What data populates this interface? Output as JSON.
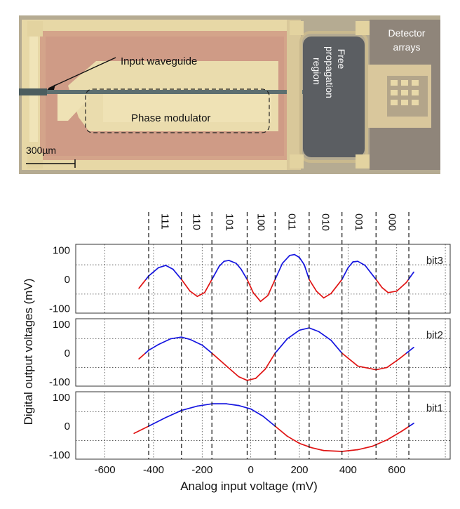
{
  "figure": {
    "labels": {
      "input_waveguide": "Input waveguide",
      "phase_modulator": "Phase modulator",
      "free_propagation_1": "Free",
      "free_propagation_2": "propagation",
      "free_propagation_3": "region",
      "detector_1": "Detector",
      "detector_2": "arrays",
      "scale_bar": "300µm"
    }
  },
  "colors": {
    "positive": "#1515e0",
    "negative": "#e01414"
  },
  "chart_data": {
    "type": "line",
    "xlabel": "Analog input voltage (mV)",
    "ylabel": "Digital output voltages (mV)",
    "xlim": [
      -720,
      820
    ],
    "x_ticks": [
      -600,
      -400,
      -200,
      0,
      200,
      400,
      600
    ],
    "y_ticks": [
      100,
      0,
      -100
    ],
    "grid": true,
    "codes": [
      "111",
      "110",
      "101",
      "100",
      "011",
      "010",
      "001",
      "000"
    ],
    "code_boundaries": [
      -420,
      -285,
      -160,
      -15,
      100,
      240,
      375,
      515,
      650
    ],
    "color_rule": "blue when value >= 0, red when value < 0",
    "panels": [
      {
        "label": "bit3",
        "ylim": [
          -115,
          120
        ],
        "x": [
          -460,
          -420,
          -380,
          -350,
          -320,
          -285,
          -250,
          -220,
          -190,
          -160,
          -130,
          -110,
          -90,
          -60,
          -40,
          -15,
          10,
          40,
          70,
          100,
          130,
          160,
          180,
          200,
          220,
          240,
          270,
          300,
          330,
          375,
          400,
          420,
          440,
          470,
          515,
          540,
          565,
          600,
          640,
          670
        ],
        "values": [
          -30,
          12,
          40,
          48,
          35,
          0,
          -40,
          -58,
          -45,
          0,
          45,
          62,
          65,
          55,
          35,
          0,
          -45,
          -75,
          -55,
          0,
          55,
          82,
          85,
          75,
          50,
          0,
          -40,
          -63,
          -48,
          0,
          40,
          60,
          62,
          48,
          0,
          -28,
          -45,
          -40,
          -10,
          25
        ]
      },
      {
        "label": "bit2",
        "ylim": [
          -115,
          120
        ],
        "x": [
          -460,
          -420,
          -380,
          -330,
          -285,
          -250,
          -200,
          -160,
          -100,
          -50,
          -15,
          20,
          60,
          100,
          150,
          200,
          240,
          280,
          330,
          375,
          440,
          515,
          560,
          610,
          670
        ],
        "values": [
          -20,
          10,
          30,
          50,
          56,
          48,
          28,
          0,
          -45,
          -82,
          -95,
          -88,
          -55,
          0,
          50,
          80,
          88,
          75,
          45,
          0,
          -45,
          -58,
          -50,
          -20,
          20
        ]
      },
      {
        "label": "bit1",
        "ylim": [
          -115,
          120
        ],
        "x": [
          -480,
          -420,
          -350,
          -285,
          -220,
          -160,
          -100,
          -50,
          0,
          50,
          100,
          150,
          200,
          250,
          300,
          375,
          440,
          500,
          560,
          620,
          670
        ],
        "values": [
          -25,
          0,
          30,
          55,
          70,
          78,
          78,
          72,
          60,
          35,
          0,
          -35,
          -60,
          -75,
          -85,
          -88,
          -82,
          -70,
          -48,
          -18,
          10
        ]
      }
    ]
  }
}
